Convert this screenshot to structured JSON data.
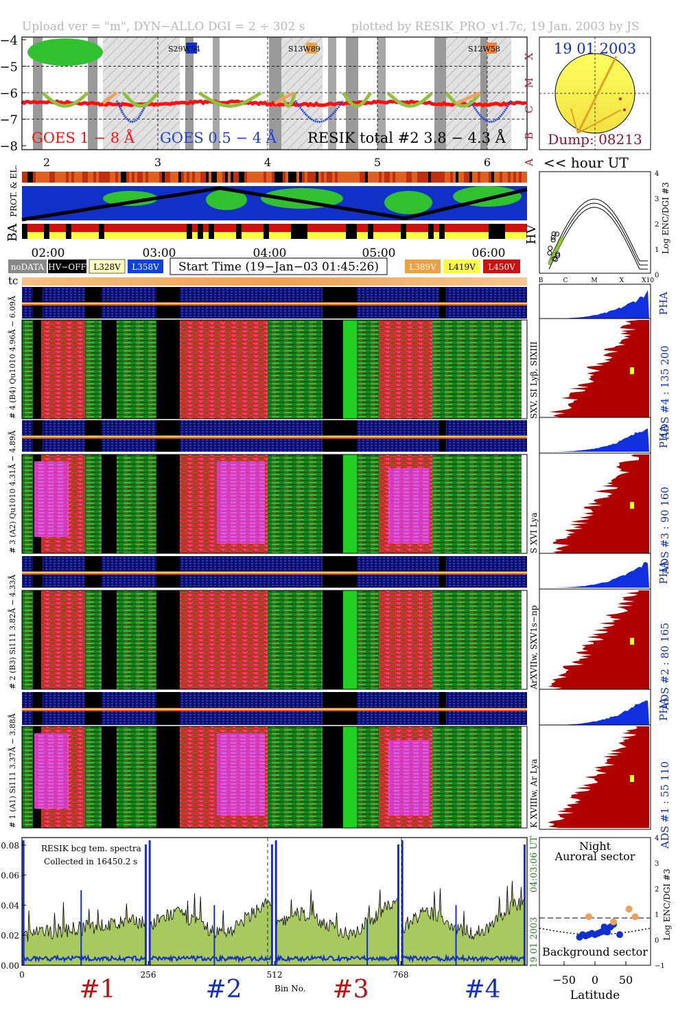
{
  "header": {
    "upload": "Upload ver = \"m\", DYN−ALLO DGI =   2 ÷ 302 s",
    "plotted": "plotted by RESIK_PRO_v1.7c, 19 Jan. 2003 by JS"
  },
  "goes_panel": {
    "yticks": [
      "−4",
      "−5",
      "−6",
      "−7",
      "−8"
    ],
    "class_labels": [
      "X",
      "M",
      "C",
      "B",
      "A"
    ],
    "goes_long": "GOES 1 − 8 Å",
    "goes_short": "GOES 0.5 − 4 Å",
    "resik": "RESIK total #2  3.8 − 4.3 Å",
    "regions": [
      "S29W54",
      "S13W89",
      "S12W58"
    ],
    "region_colors": [
      "#1030d0",
      "#f0a040",
      "#f08040"
    ],
    "hour_ticks": [
      "2",
      "3",
      "4",
      "5",
      "6"
    ],
    "colors": {
      "long": "#ff1010",
      "short": "#2040e0",
      "resik_green": "#90c040",
      "resik_orange": "#f0a060"
    }
  },
  "sun_panel": {
    "date": "19 01 2003",
    "dump": "Dump: 08213",
    "hour_ut": "<< hour UT"
  },
  "orbit_panel": {
    "labels": [
      "PROT. & EL.",
      "BA",
      "HV"
    ],
    "time_ticks": [
      "02:00",
      "03:00",
      "04:00",
      "05:00",
      "06:00"
    ]
  },
  "legend": {
    "nodata": "noDATA",
    "hvoff": "HV−OFF",
    "v1": "L328V",
    "v2": "L358V",
    "start": "Start Time (19−Jan−03 01:45:26)",
    "v3": "L389V",
    "v4": "L419V",
    "v5": "L450V",
    "colors": {
      "v1": "#ffffc0",
      "v2": "#1040e0",
      "v3": "#f0a040",
      "v4": "#ffff40",
      "v5": "#d01010"
    }
  },
  "enc_panel": {
    "ylabel": "Log ENC/DGI #3",
    "xlabels": [
      "B",
      "C",
      "M",
      "X",
      "X10"
    ],
    "yticks": [
      "4",
      "3",
      "2",
      "1",
      "0"
    ]
  },
  "spectro": {
    "tc": "tc",
    "rows": [
      {
        "pha_label": "# 4 (B4)  Qu1010  4.96Å − 6.09Å",
        "lines": "SXV, SI Lyβ, SIXIII",
        "ads": "ADS #4 :   135 200",
        "pha": "PHA"
      },
      {
        "pha_label": "# 3 (A2)  Qu1010  4.31Å − 4.89Å",
        "lines": "S XVI Lya",
        "ads": "ADS #3 :   90 160",
        "pha": "PHA"
      },
      {
        "pha_label": "# 2 (B3)  Si111  3.82Å − 4.33Å",
        "lines": "ArXVIIw, SXV1s−np",
        "ads": "ADS #2 :   80 165",
        "pha": "PHA"
      },
      {
        "pha_label": "# 1 (A1)  Si111  3.37Å − 3.88Å",
        "lines": "K XVIIIw, Ar Lya",
        "ads": "ADS #1 :   55 110",
        "pha": "PHA"
      }
    ]
  },
  "spectrum_panel": {
    "title1": "RESIK bcg tem. spectra",
    "title2": "Collected in 16450.2 s",
    "yticks": [
      "0.08",
      "0.06",
      "0.04",
      "0.02",
      "0.00"
    ],
    "xticks": [
      "0",
      "256",
      "512",
      "768"
    ],
    "xlabel": "Bin No.",
    "channels": [
      "#1",
      "#2",
      "#3",
      "#4"
    ],
    "channel_colors": [
      "#c01010",
      "#1030c0",
      "#c01010",
      "#1030c0"
    ],
    "side_time": "04:03:06 UT",
    "side_date": "19 01 2003"
  },
  "latitude_panel": {
    "night": "Night",
    "auroral": "Auroral sector",
    "background": "Background sector",
    "xlabel": "Latitude",
    "xticks": [
      "−50",
      "0",
      "50"
    ],
    "yticks": [
      "4",
      "3",
      "2",
      "1",
      "0",
      "−1"
    ],
    "ylabel": "Log ENC/DGI #3"
  },
  "chart_data": {
    "type": "scatter",
    "title": "",
    "series": [
      {
        "name": "Background sector",
        "x": [
          -25,
          -20,
          -15,
          -10,
          -5,
          0,
          5,
          10,
          15,
          20,
          25,
          30,
          40
        ],
        "y": [
          0.1,
          0.2,
          0.15,
          0.2,
          0.25,
          0.2,
          0.25,
          0.3,
          0.5,
          0.3,
          0.5,
          0.6,
          0.2
        ]
      },
      {
        "name": "Auroral sector",
        "x": [
          -10,
          30,
          55,
          65
        ],
        "y": [
          0.9,
          0.7,
          1.2,
          0.9
        ]
      }
    ],
    "xlabel": "Latitude",
    "ylabel": "Log ENC/DGI #3",
    "xlim": [
      -90,
      90
    ],
    "ylim": [
      -1,
      4
    ]
  }
}
